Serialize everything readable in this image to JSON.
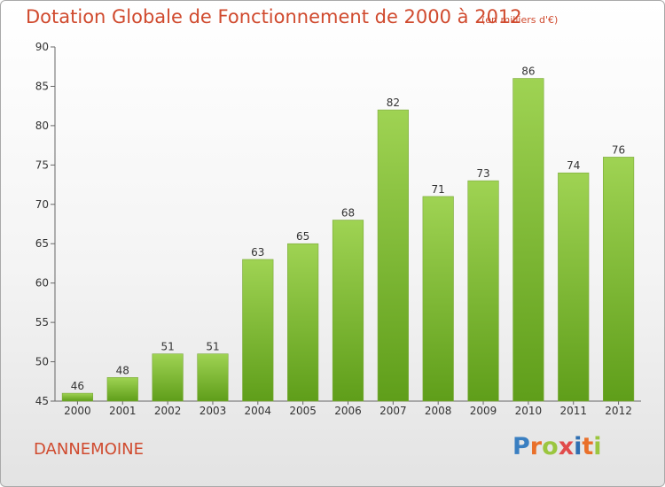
{
  "title": "Dotation Globale de Fonctionnement de 2000 à 2012",
  "subtitle": "(en milliers d'€)",
  "commune": "DANNEMOINE",
  "logo": {
    "text": "Proxiti",
    "letters": [
      "P",
      "r",
      "o",
      "x",
      "i",
      "t",
      "i"
    ],
    "colors": [
      "#3a7fc1",
      "#e9702a",
      "#9bc63f",
      "#e14b4b",
      "#2f6fb2",
      "#e9702a",
      "#9bc63f"
    ]
  },
  "colors": {
    "bar_top": "#9fd353",
    "bar_bottom": "#5f9e1a",
    "bar_edge": "#7aa83a",
    "title": "#d04a2e"
  },
  "chart_data": {
    "type": "bar",
    "title": "Dotation Globale de Fonctionnement de 2000 à 2012",
    "subtitle": "(en milliers d'€)",
    "xlabel": "",
    "ylabel": "",
    "categories": [
      "2000",
      "2001",
      "2002",
      "2003",
      "2004",
      "2005",
      "2006",
      "2007",
      "2008",
      "2009",
      "2010",
      "2011",
      "2012"
    ],
    "values": [
      46,
      48,
      51,
      51,
      63,
      65,
      68,
      82,
      71,
      73,
      86,
      74,
      76
    ],
    "ylim": [
      45,
      90
    ],
    "yticks": [
      45,
      50,
      55,
      60,
      65,
      70,
      75,
      80,
      85,
      90
    ],
    "grid": false,
    "legend": "none"
  }
}
